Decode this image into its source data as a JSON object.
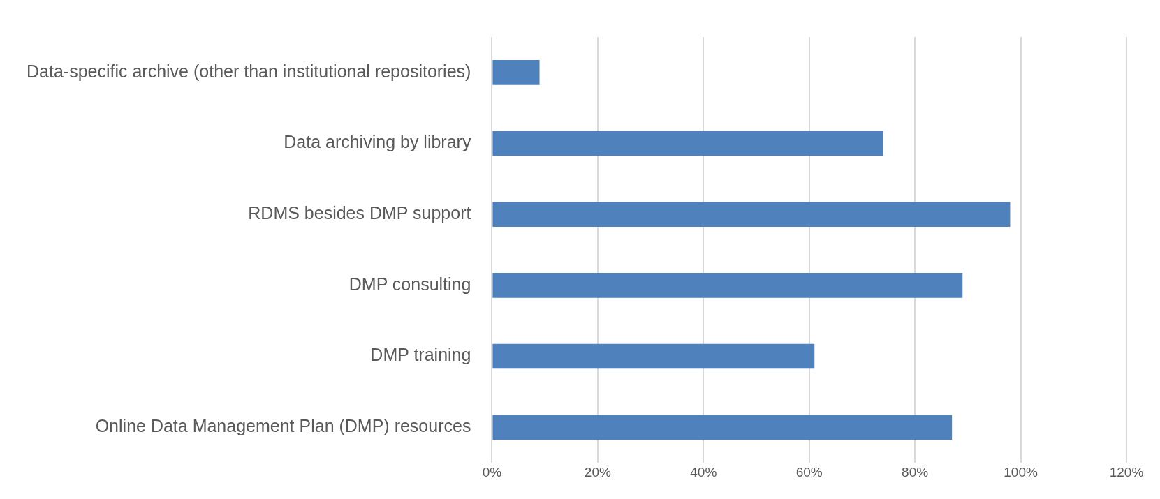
{
  "chart_data": {
    "type": "bar",
    "orientation": "horizontal",
    "categories": [
      "Data-specific archive (other than institutional repositories)",
      "Data archiving by library",
      "RDMS besides DMP support",
      "DMP consulting",
      "DMP training",
      "Online Data Management Plan (DMP) resources"
    ],
    "values": [
      9,
      74,
      98,
      89,
      61,
      87
    ],
    "color": "#4f81bd",
    "xlim": [
      0,
      120
    ],
    "xticks": [
      {
        "value": 0,
        "label": "0%"
      },
      {
        "value": 20,
        "label": "20%"
      },
      {
        "value": 40,
        "label": "40%"
      },
      {
        "value": 60,
        "label": "60%"
      },
      {
        "value": 80,
        "label": "80%"
      },
      {
        "value": 100,
        "label": "100%"
      },
      {
        "value": 120,
        "label": "120%"
      }
    ],
    "grid": "x",
    "legend": false
  }
}
